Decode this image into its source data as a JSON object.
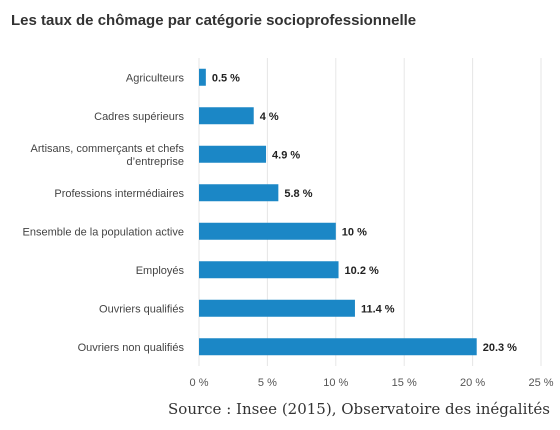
{
  "chart_data": {
    "type": "bar",
    "orientation": "horizontal",
    "title": "Les taux de chômage par catégorie socioprofessionnelle",
    "categories": [
      [
        "Agriculteurs"
      ],
      [
        "Cadres supérieurs"
      ],
      [
        "Artisans, commerçants et chefs",
        "d’entreprise"
      ],
      [
        "Professions intermédiaires"
      ],
      [
        "Ensemble de la population active"
      ],
      [
        "Employés"
      ],
      [
        "Ouvriers qualifiés"
      ],
      [
        "Ouvriers non qualifiés"
      ]
    ],
    "values": [
      0.5,
      4,
      4.9,
      5.8,
      10,
      10.2,
      11.4,
      20.3
    ],
    "value_labels": [
      "0.5 %",
      "4 %",
      "4.9 %",
      "5.8 %",
      "10 %",
      "10.2 %",
      "11.4 %",
      "20.3 %"
    ],
    "xticks": [
      0,
      5,
      10,
      15,
      20,
      25
    ],
    "xtick_labels": [
      "0 %",
      "5 %",
      "10 %",
      "15 %",
      "20 %",
      "25 %"
    ],
    "xlim": [
      0,
      25
    ],
    "grid": true,
    "bar_color": "#1b87c6",
    "grid_color": "#e6e6e6",
    "source": "Source : Insee (2015), Observatoire des inégalités"
  }
}
